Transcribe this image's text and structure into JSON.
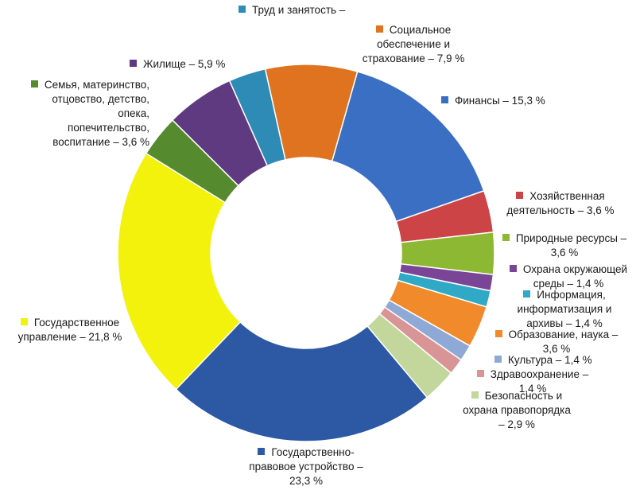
{
  "chart_data": {
    "type": "pie",
    "variant": "donut",
    "slices": [
      {
        "label": "Труд и занятость –",
        "value": 3.2,
        "color": "#2E8BB5"
      },
      {
        "label": "Социальное обеспечение и страхование – 7,9 %",
        "value": 7.9,
        "color": "#E0731F"
      },
      {
        "label": "Финансы – 15,3 %",
        "value": 15.3,
        "color": "#3A6FC4"
      },
      {
        "label": "Хозяйственная деятельность – 3,6 %",
        "value": 3.6,
        "color": "#CC4446"
      },
      {
        "label": "Природные ресурсы – 3,6 %",
        "value": 3.6,
        "color": "#8DB833"
      },
      {
        "label": "Охрана окружающей среды – 1,4 %",
        "value": 1.4,
        "color": "#7A4596"
      },
      {
        "label": "Информация, информатизация и архивы – 1,4 %",
        "value": 1.4,
        "color": "#2FA9C6"
      },
      {
        "label": "Образование, наука – 3,6 %",
        "value": 3.6,
        "color": "#F08A2A"
      },
      {
        "label": "Культура – 1,4 %",
        "value": 1.4,
        "color": "#8FA9D6"
      },
      {
        "label": "Здравоохранение – 1,4 %",
        "value": 1.4,
        "color": "#D99496"
      },
      {
        "label": "Безопасность и охрана правопорядка – 2,9 %",
        "value": 2.9,
        "color": "#C3D69B"
      },
      {
        "label": "Государственно-правовое устройство – 23,3 %",
        "value": 23.3,
        "color": "#2D58A3"
      },
      {
        "label": "Государственное управление – 21,8 %",
        "value": 21.8,
        "color": "#F2F20D"
      },
      {
        "label": "Семья, материнство, отцовство, детство, опека, попечительство, воспитание – 3,6 %",
        "value": 3.6,
        "color": "#558A2E"
      },
      {
        "label": "Жилище – 5,9 %",
        "value": 5.9,
        "color": "#603A80"
      }
    ]
  },
  "labels": {
    "trud": "Труд и занятость –",
    "social": [
      "Социальное",
      "обеспечение и",
      "страхование – 7,9 %"
    ],
    "finance": "Финансы – 15,3 %",
    "hoz": [
      "Хозяйственная",
      "деятельность – 3,6 %"
    ],
    "prirod": [
      "Природные ресурсы –",
      "3,6 %"
    ],
    "ohrana": [
      "Охрана окружающей",
      "среды – 1,4 %"
    ],
    "info": [
      "Информация,",
      "информатизация и",
      "архивы – 1,4 %"
    ],
    "obraz": [
      "Образование, наука –",
      "3,6 %"
    ],
    "kult": "Культура – 1,4 %",
    "zdrav": [
      "Здравоохранение –",
      "1,4 %"
    ],
    "bezop": [
      "Безопасность и",
      "охрана правопорядка",
      "– 2,9 %"
    ],
    "gospravo": [
      "Государственно-",
      "правовое устройство –",
      "23,3 %"
    ],
    "gosupr": [
      "Государственное",
      "управление – 21,8 %"
    ],
    "semya": [
      "Семья, материнство,",
      "отцовство, детство,",
      "опека,",
      "попечительство,",
      "воспитание – 3,6 %"
    ],
    "zhilische": "Жилище – 5,9 %"
  }
}
